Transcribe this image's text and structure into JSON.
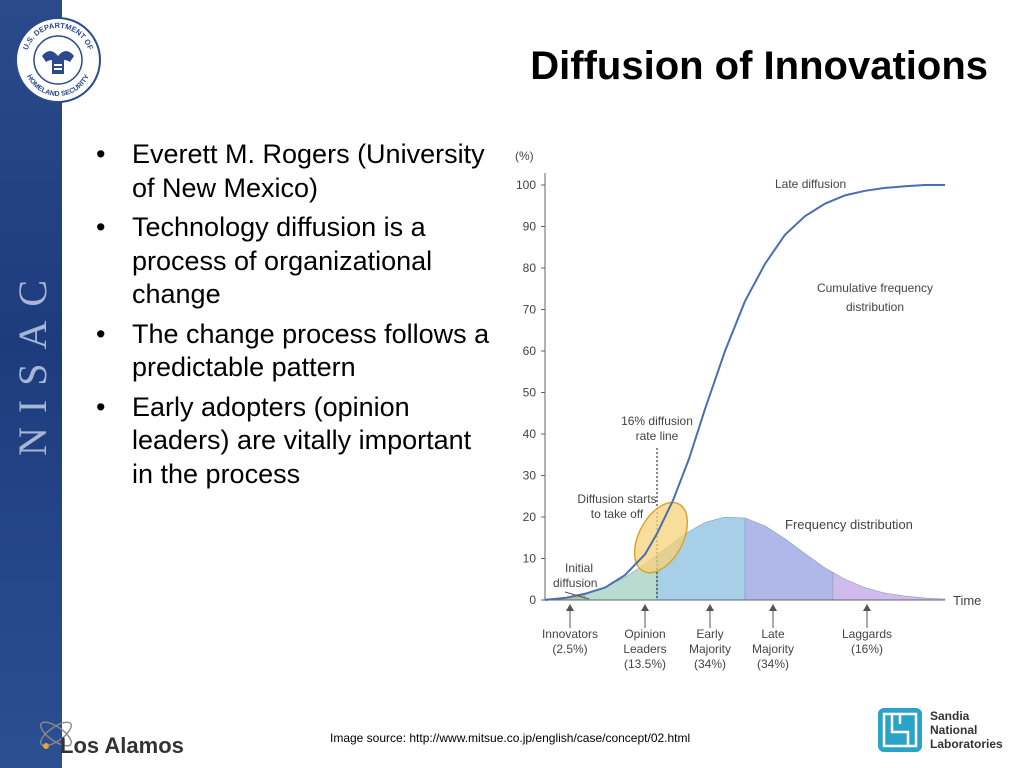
{
  "slide": {
    "title": "Diffusion of Innovations",
    "bullets": [
      "Everett M. Rogers (University of New Mexico)",
      "Technology diffusion is a process of organizational change",
      "The change process follows a predictable pattern",
      "Early adopters (opinion leaders) are vitally important in the process"
    ],
    "bullet_glyph": "•",
    "image_source": "Image source:  http://www.mitsue.co.jp/english/case/concept/02.html"
  },
  "sidebar": {
    "seal_top": "U.S. DEPARTMENT OF",
    "seal_bottom": "HOMELAND SECURITY",
    "vertical_text": "NISAC",
    "color": "#2a4a8c"
  },
  "logos": {
    "los_alamos": "Los Alamos",
    "sandia": [
      "Sandia",
      "National",
      "Laboratories"
    ]
  },
  "chart_data": {
    "type": "area",
    "y_unit_label": "(%)",
    "x_axis_label": "Time",
    "y_ticks": [
      0,
      10,
      20,
      30,
      40,
      50,
      60,
      70,
      80,
      90,
      100
    ],
    "ylim": [
      0,
      100
    ],
    "xlim": [
      0,
      1
    ],
    "grid": false,
    "series": [
      {
        "name": "Cumulative frequency distribution",
        "color": "#4a6fb0",
        "x": [
          0,
          0.05,
          0.1,
          0.15,
          0.2,
          0.25,
          0.28,
          0.32,
          0.36,
          0.4,
          0.45,
          0.5,
          0.55,
          0.6,
          0.65,
          0.7,
          0.75,
          0.8,
          0.85,
          0.9,
          0.95,
          1.0
        ],
        "y": [
          0,
          0.5,
          1.5,
          3,
          6,
          11,
          16,
          24,
          34,
          46,
          60,
          72,
          81,
          88,
          92.5,
          95.5,
          97.5,
          98.6,
          99.3,
          99.7,
          100,
          100
        ]
      },
      {
        "name": "Frequency distribution",
        "x": [
          0.0,
          0.05,
          0.1,
          0.15,
          0.2,
          0.25,
          0.3,
          0.35,
          0.4,
          0.45,
          0.5,
          0.55,
          0.6,
          0.65,
          0.7,
          0.75,
          0.8,
          0.85,
          0.9,
          0.95,
          1.0
        ],
        "y": [
          0.2,
          0.5,
          1.2,
          2.6,
          4.6,
          7.2,
          10.3,
          13.4,
          15.7,
          16.8,
          16.6,
          15.0,
          12.4,
          9.4,
          6.5,
          4.2,
          2.5,
          1.4,
          0.8,
          0.4,
          0.2
        ],
        "segments": [
          {
            "name": "Innovators",
            "share": "(2.5%)",
            "x_start": 0.0,
            "x_end": 0.1,
            "color": "#a8c8a0"
          },
          {
            "name": "Opinion Leaders",
            "share": "(13.5%)",
            "x_start": 0.1,
            "x_end": 0.28,
            "color": "#b8dcd0"
          },
          {
            "name": "Early Majority",
            "share": "(34%)",
            "x_start": 0.28,
            "x_end": 0.5,
            "color": "#a8cfe8"
          },
          {
            "name": "Late Majority",
            "share": "(34%)",
            "x_start": 0.5,
            "x_end": 0.72,
            "color": "#b0b8ea"
          },
          {
            "name": "Laggards",
            "share": "(16%)",
            "x_start": 0.72,
            "x_end": 1.0,
            "color": "#d0bcec"
          }
        ]
      }
    ],
    "reference_line": {
      "x": 0.28,
      "label": "16% diffusion rate line"
    },
    "highlight": {
      "label": "Diffusion starts to take off",
      "color": "#f5d27a"
    },
    "annotations": {
      "late": "Late diffusion",
      "cumulative": "Cumulative frequency distribution",
      "frequency": "Frequency distribution",
      "initial": "Initial diffusion"
    }
  }
}
